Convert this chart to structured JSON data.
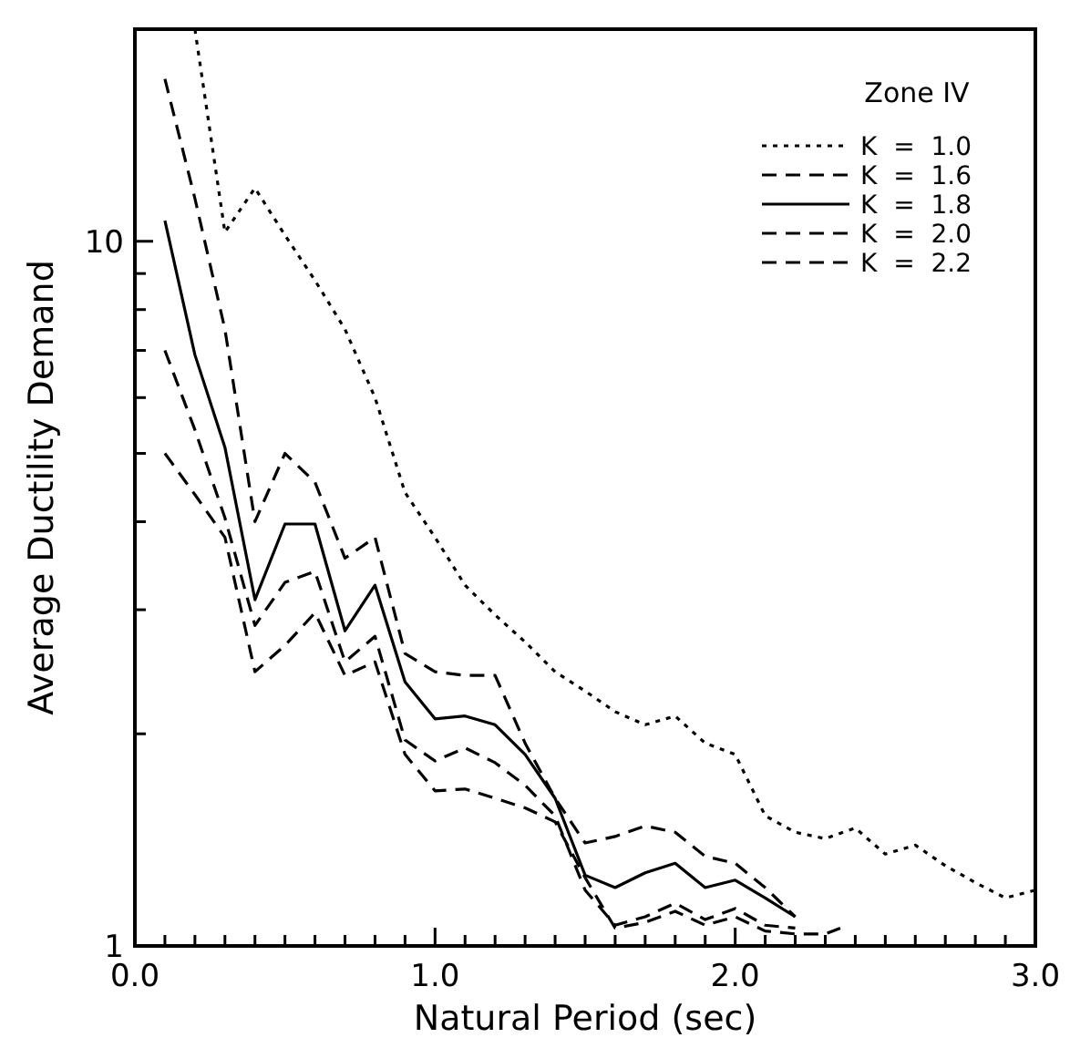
{
  "chart_data": {
    "type": "line",
    "xlabel": "Natural Period (sec)",
    "ylabel": "Average Ductility Demand",
    "legend_title": "Zone IV",
    "legend": "top right",
    "log": "y",
    "grid": false,
    "marker": "none",
    "xlim": [
      0,
      3
    ],
    "ylim": [
      1,
      20
    ],
    "xticks": [
      {
        "value": 0,
        "label": "0.0"
      },
      {
        "value": 0.1,
        "label": null
      },
      {
        "value": 0.2,
        "label": null
      },
      {
        "value": 0.3,
        "label": null
      },
      {
        "value": 0.4,
        "label": null
      },
      {
        "value": 0.5,
        "label": null
      },
      {
        "value": 0.6,
        "label": null
      },
      {
        "value": 0.7,
        "label": null
      },
      {
        "value": 0.8,
        "label": null
      },
      {
        "value": 0.9,
        "label": null
      },
      {
        "value": 1,
        "label": "1.0"
      },
      {
        "value": 1.1,
        "label": null
      },
      {
        "value": 1.2,
        "label": null
      },
      {
        "value": 1.3,
        "label": null
      },
      {
        "value": 1.4,
        "label": null
      },
      {
        "value": 1.5,
        "label": null
      },
      {
        "value": 1.6,
        "label": null
      },
      {
        "value": 1.7,
        "label": null
      },
      {
        "value": 1.8,
        "label": null
      },
      {
        "value": 1.9,
        "label": null
      },
      {
        "value": 2,
        "label": "2.0"
      },
      {
        "value": 2.1,
        "label": null
      },
      {
        "value": 2.2,
        "label": null
      },
      {
        "value": 2.3,
        "label": null
      },
      {
        "value": 2.4,
        "label": null
      },
      {
        "value": 2.5,
        "label": null
      },
      {
        "value": 2.6,
        "label": null
      },
      {
        "value": 2.7,
        "label": null
      },
      {
        "value": 2.8,
        "label": null
      },
      {
        "value": 2.9,
        "label": null
      },
      {
        "value": 3,
        "label": "3.0"
      }
    ],
    "yticks": [
      1,
      {
        "value": 2,
        "label": null
      },
      {
        "value": 3,
        "label": null
      },
      {
        "value": 4,
        "label": null
      },
      {
        "value": 5,
        "label": null
      },
      {
        "value": 6,
        "label": null
      },
      {
        "value": 7,
        "label": null
      },
      {
        "value": 8,
        "label": null
      },
      {
        "value": 9,
        "label": null
      },
      10
    ],
    "series": [
      {
        "name": "K  =  1.0",
        "color": "#000000",
        "line_style": "dotted",
        "x": [
          0.2,
          0.3,
          0.4,
          0.5,
          0.6,
          0.7,
          0.8,
          0.9,
          1.0,
          1.1,
          1.2,
          1.3,
          1.4,
          1.5,
          1.6,
          1.7,
          1.8,
          1.9,
          2.0,
          2.1,
          2.2,
          2.3,
          2.4,
          2.5,
          2.6,
          2.7,
          2.8,
          2.9,
          3.0
        ],
        "values": [
          20,
          10.3,
          11.9,
          10.2,
          8.8,
          7.5,
          6.0,
          4.4,
          3.8,
          3.25,
          2.95,
          2.7,
          2.45,
          2.3,
          2.15,
          2.06,
          2.12,
          1.94,
          1.87,
          1.53,
          1.45,
          1.42,
          1.47,
          1.35,
          1.39,
          1.3,
          1.23,
          1.17,
          1.2
        ]
      },
      {
        "name": "K  =  1.6",
        "color": "#000000",
        "line_style": "dashed",
        "x": [
          0.1,
          0.2,
          0.3,
          0.4,
          0.5,
          0.6,
          0.7,
          0.8,
          0.9,
          1.0,
          1.1,
          1.2,
          1.3,
          1.4,
          1.5,
          1.6,
          1.7,
          1.8,
          1.9,
          2.0,
          2.1,
          2.2
        ],
        "values": [
          17,
          11.5,
          7.5,
          4.0,
          5.0,
          4.55,
          3.55,
          3.8,
          2.6,
          2.45,
          2.42,
          2.42,
          1.94,
          1.62,
          1.4,
          1.43,
          1.48,
          1.45,
          1.34,
          1.31,
          1.21,
          1.1
        ]
      },
      {
        "name": "K  =  1.8",
        "color": "#000000",
        "line_style": "solid",
        "x": [
          0.1,
          0.2,
          0.3,
          0.4,
          0.5,
          0.6,
          0.7,
          0.8,
          0.9,
          1.0,
          1.1,
          1.2,
          1.3,
          1.4,
          1.5,
          1.6,
          1.7,
          1.8,
          1.9,
          2.0,
          2.1,
          2.2
        ],
        "values": [
          10.7,
          6.9,
          5.1,
          3.1,
          3.97,
          3.97,
          2.8,
          3.25,
          2.37,
          2.1,
          2.12,
          2.06,
          1.87,
          1.62,
          1.26,
          1.21,
          1.27,
          1.31,
          1.21,
          1.24,
          1.17,
          1.1
        ]
      },
      {
        "name": "K  =  2.0",
        "color": "#000000",
        "line_style": "dashed",
        "x": [
          0.1,
          0.2,
          0.3,
          0.4,
          0.5,
          0.6,
          0.7,
          0.8,
          0.9,
          1.0,
          1.1,
          1.2,
          1.3,
          1.4,
          1.5,
          1.6,
          1.7,
          1.8,
          1.9,
          2.0,
          2.1,
          2.2
        ],
        "values": [
          7.0,
          5.4,
          4.05,
          2.85,
          3.28,
          3.4,
          2.53,
          2.75,
          1.96,
          1.83,
          1.91,
          1.82,
          1.69,
          1.53,
          1.2,
          1.07,
          1.1,
          1.15,
          1.09,
          1.13,
          1.07,
          1.06
        ]
      },
      {
        "name": "K  =  2.2",
        "color": "#000000",
        "line_style": "dashed",
        "x": [
          0.1,
          0.2,
          0.3,
          0.4,
          0.5,
          0.6,
          0.7,
          0.8,
          0.9,
          1.0,
          1.1,
          1.2,
          1.3,
          1.4,
          1.5,
          1.6,
          1.7,
          1.8,
          1.9,
          2.0,
          2.1,
          2.2,
          2.3,
          2.35
        ],
        "values": [
          5.0,
          4.37,
          3.8,
          2.45,
          2.67,
          2.97,
          2.42,
          2.53,
          1.87,
          1.66,
          1.67,
          1.62,
          1.57,
          1.5,
          1.25,
          1.06,
          1.08,
          1.12,
          1.07,
          1.1,
          1.05,
          1.04,
          1.04,
          1.06
        ]
      }
    ]
  }
}
